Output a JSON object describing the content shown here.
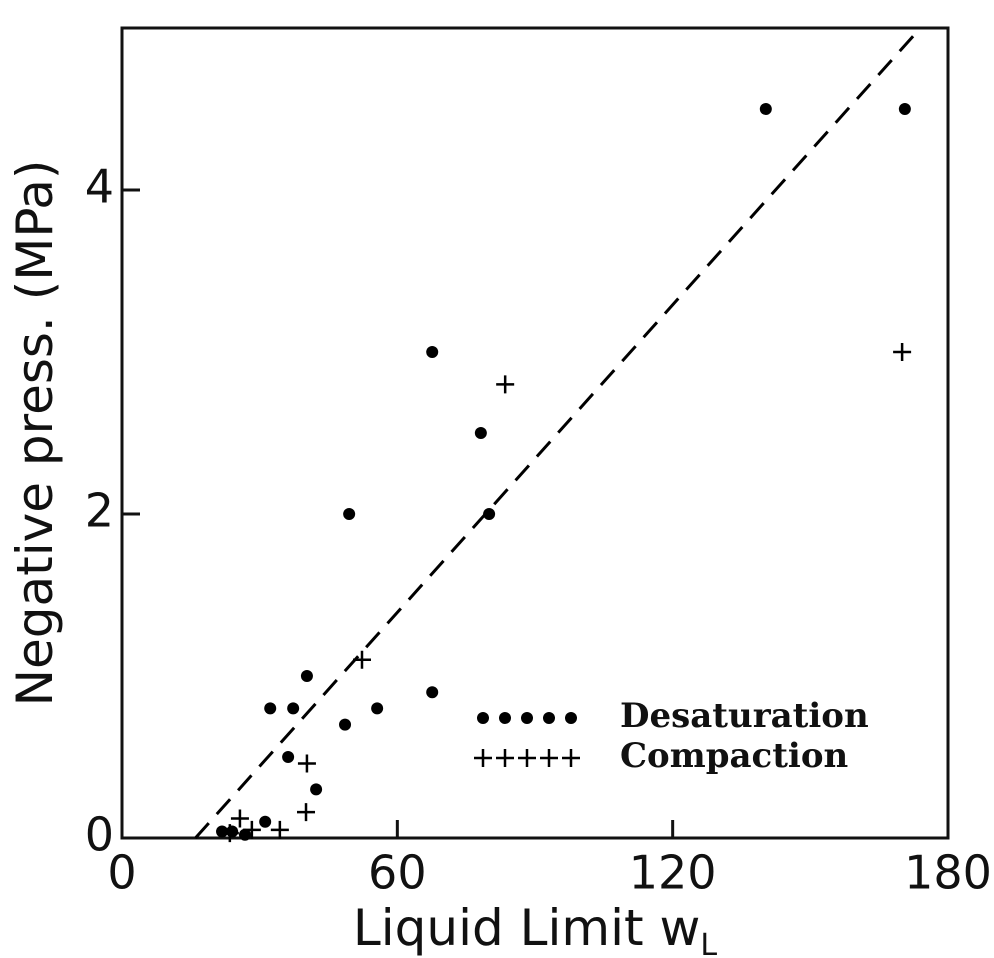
{
  "chart_data": {
    "type": "scatter",
    "xlabel": "Liquid Limit  w",
    "xlabel_subscript": "L",
    "ylabel": "Negative press. (MPa)",
    "xlim": [
      0,
      180
    ],
    "ylim": [
      0,
      5
    ],
    "xticks": [
      0,
      60,
      120,
      180
    ],
    "yticks": [
      0,
      2,
      4
    ],
    "legend": "lower right",
    "series": [
      {
        "name": "Desaturation",
        "marker": "dot",
        "color": "#000000",
        "x": [
          140.3,
          170.6,
          67.6,
          78.2,
          49.5,
          80.0,
          40.3,
          67.6,
          32.3,
          37.3,
          55.6,
          48.6,
          36.2,
          42.3,
          31.2,
          21.8,
          24.0,
          26.8
        ],
        "values": [
          4.5,
          4.5,
          3.0,
          2.5,
          2.0,
          2.0,
          1.0,
          0.9,
          0.8,
          0.8,
          0.8,
          0.7,
          0.5,
          0.3,
          0.1,
          0.04,
          0.04,
          0.02
        ]
      },
      {
        "name": "Compaction",
        "marker": "plus",
        "color": "#000000",
        "x": [
          170.0,
          83.5,
          52.3,
          40.3,
          40.1,
          25.7,
          28.3,
          34.4,
          23.5
        ],
        "values": [
          3.0,
          2.8,
          1.1,
          0.46,
          0.16,
          0.12,
          0.05,
          0.05,
          0.03
        ]
      }
    ],
    "trend_line": {
      "x": [
        16,
        174
      ],
      "values": [
        0,
        5
      ],
      "color": "#000000",
      "dashed": true
    }
  }
}
